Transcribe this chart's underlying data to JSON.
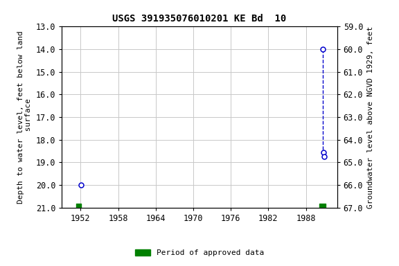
{
  "title": "USGS 391935076010201 KE Bd  10",
  "ylabel_left": "Depth to water level, feet below land\n surface",
  "ylabel_right": "Groundwater level above NGVD 1929, feet",
  "xlim": [
    1949,
    1993
  ],
  "ylim_left": [
    13.0,
    21.0
  ],
  "ylim_right": [
    59.0,
    67.0
  ],
  "yticks_left": [
    13.0,
    14.0,
    15.0,
    16.0,
    17.0,
    18.0,
    19.0,
    20.0,
    21.0
  ],
  "yticks_right": [
    59.0,
    60.0,
    61.0,
    62.0,
    63.0,
    64.0,
    65.0,
    66.0,
    67.0
  ],
  "xticks": [
    1952,
    1958,
    1964,
    1970,
    1976,
    1982,
    1988
  ],
  "data_points_x": [
    1952.1,
    1990.7,
    1990.85,
    1990.95
  ],
  "data_points_y": [
    20.0,
    14.0,
    18.55,
    18.75
  ],
  "data_color": "#0000cc",
  "line_color": "#0000cc",
  "green_bar_x1": 1951.3,
  "green_bar_x2": 1952.1,
  "green_bar_x3": 1990.2,
  "green_bar_x4": 1991.1,
  "green_color": "#008000",
  "legend_label": "Period of approved data",
  "bg_color": "#ffffff",
  "grid_color": "#c8c8c8",
  "title_fontsize": 10,
  "label_fontsize": 8,
  "tick_fontsize": 8.5,
  "marker_size": 5
}
